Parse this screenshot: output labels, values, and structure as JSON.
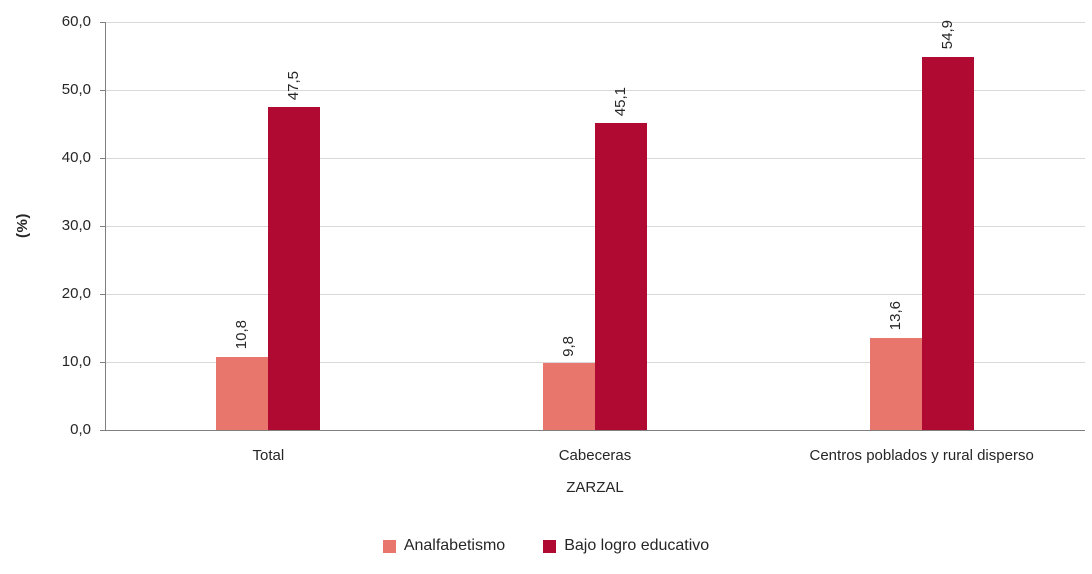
{
  "chart_data": {
    "type": "bar",
    "title": "",
    "categories": [
      "Total",
      "Cabeceras",
      "Centros poblados y rural disperso"
    ],
    "series": [
      {
        "name": "Analfabetismo",
        "color": "#e8766d",
        "values": [
          10.8,
          9.8,
          13.6
        ],
        "labels": [
          "10,8",
          "9,8",
          "13,6"
        ]
      },
      {
        "name": "Bajo logro educativo",
        "color": "#b00a33",
        "values": [
          47.5,
          45.1,
          54.9
        ],
        "labels": [
          "47,5",
          "45,1",
          "54,9"
        ]
      }
    ],
    "xlabel": "ZARZAL",
    "ylabel": "(%)",
    "ylim": [
      0,
      60
    ],
    "ytick_step": 10,
    "ytick_labels": [
      "0,0",
      "10,0",
      "20,0",
      "30,0",
      "40,0",
      "50,0",
      "60,0"
    ],
    "grid": true,
    "legend_position": "bottom"
  }
}
